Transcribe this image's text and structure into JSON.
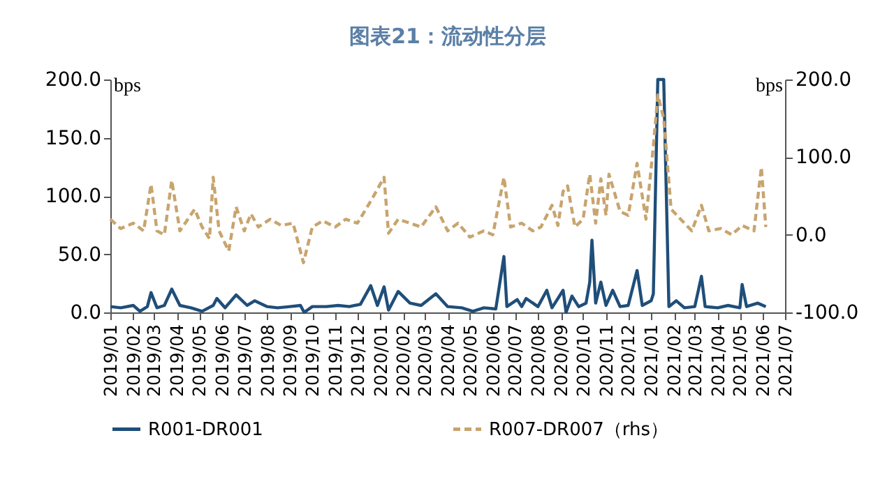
{
  "chart_data": {
    "type": "line",
    "title": "图表21：流动性分层",
    "ylabel": "bps",
    "y2label": "bps",
    "xlim": [
      "2019-01",
      "2021-07"
    ],
    "xticks": [
      {
        "value": "2019-01",
        "label": "2019/01"
      },
      {
        "value": "2019-02",
        "label": "2019/02"
      },
      {
        "value": "2019-03",
        "label": "2019/03"
      },
      {
        "value": "2019-04",
        "label": "2019/04"
      },
      {
        "value": "2019-05",
        "label": "2019/05"
      },
      {
        "value": "2019-06",
        "label": "2019/06"
      },
      {
        "value": "2019-07",
        "label": "2019/07"
      },
      {
        "value": "2019-08",
        "label": "2019/08"
      },
      {
        "value": "2019-09",
        "label": "2019/09"
      },
      {
        "value": "2019-10",
        "label": "2019/10"
      },
      {
        "value": "2019-11",
        "label": "2019/11"
      },
      {
        "value": "2019-12",
        "label": "2019/12"
      },
      {
        "value": "2020-01",
        "label": "2020/01"
      },
      {
        "value": "2020-02",
        "label": "2020/02"
      },
      {
        "value": "2020-03",
        "label": "2020/03"
      },
      {
        "value": "2020-04",
        "label": "2020/04"
      },
      {
        "value": "2020-05",
        "label": "2020/05"
      },
      {
        "value": "2020-06",
        "label": "2020/06"
      },
      {
        "value": "2020-07",
        "label": "2020/07"
      },
      {
        "value": "2020-08",
        "label": "2020/08"
      },
      {
        "value": "2020-09",
        "label": "2020/09"
      },
      {
        "value": "2020-10",
        "label": "2020/10"
      },
      {
        "value": "2020-11",
        "label": "2020/11"
      },
      {
        "value": "2020-12",
        "label": "2020/12"
      },
      {
        "value": "2021-01",
        "label": "2021/01"
      },
      {
        "value": "2021-02",
        "label": "2021/02"
      },
      {
        "value": "2021-03",
        "label": "2021/03"
      },
      {
        "value": "2021-04",
        "label": "2021/04"
      },
      {
        "value": "2021-05",
        "label": "2021/05"
      },
      {
        "value": "2021-06",
        "label": "2021/06"
      },
      {
        "value": "2021-07",
        "label": "2021/07"
      }
    ],
    "ylim": [
      0,
      200
    ],
    "yticks": [
      {
        "value": 0,
        "label": "0.0"
      },
      {
        "value": 50,
        "label": "50.0"
      },
      {
        "value": 100,
        "label": "100.0"
      },
      {
        "value": 150,
        "label": "150.0"
      },
      {
        "value": 200,
        "label": "200.0"
      }
    ],
    "y2lim": [
      -100,
      200
    ],
    "y2ticks": [
      {
        "value": -100,
        "label": "-100.0"
      },
      {
        "value": 0,
        "label": "0.0"
      },
      {
        "value": 100,
        "label": "100.0"
      },
      {
        "value": 200,
        "label": "200.0"
      }
    ],
    "legend": "bottom",
    "grid": false,
    "series": [
      {
        "name": "R001-DR001",
        "color": "#1f4e79",
        "line_style": "solid",
        "x": [
          "2019-01-01",
          "2019-01-15",
          "2019-02-01",
          "2019-02-10",
          "2019-02-20",
          "2019-02-25",
          "2019-03-05",
          "2019-03-15",
          "2019-03-25",
          "2019-04-05",
          "2019-04-20",
          "2019-05-05",
          "2019-05-20",
          "2019-05-25",
          "2019-06-05",
          "2019-06-20",
          "2019-07-05",
          "2019-07-15",
          "2019-08-01",
          "2019-08-15",
          "2019-09-01",
          "2019-09-15",
          "2019-09-20",
          "2019-10-01",
          "2019-10-20",
          "2019-11-05",
          "2019-11-20",
          "2019-12-05",
          "2019-12-19",
          "2019-12-28",
          "2020-01-06",
          "2020-01-12",
          "2020-01-25",
          "2020-02-10",
          "2020-02-25",
          "2020-03-16",
          "2020-04-01",
          "2020-04-20",
          "2020-05-05",
          "2020-05-20",
          "2020-06-05",
          "2020-06-16",
          "2020-06-20",
          "2020-07-04",
          "2020-07-10",
          "2020-07-16",
          "2020-08-01",
          "2020-08-13",
          "2020-08-20",
          "2020-09-04",
          "2020-09-08",
          "2020-09-16",
          "2020-09-25",
          "2020-10-05",
          "2020-10-10",
          "2020-10-13",
          "2020-10-18",
          "2020-10-25",
          "2020-11-01",
          "2020-11-10",
          "2020-11-20",
          "2020-12-01",
          "2020-12-13",
          "2020-12-20",
          "2021-01-01",
          "2021-01-04",
          "2021-01-10",
          "2021-01-18",
          "2021-01-25",
          "2021-02-04",
          "2021-02-15",
          "2021-03-01",
          "2021-03-10",
          "2021-03-15",
          "2021-04-01",
          "2021-04-15",
          "2021-05-01",
          "2021-05-04",
          "2021-05-10",
          "2021-05-25",
          "2021-06-05"
        ],
        "values": [
          5,
          4,
          6,
          1,
          5,
          17,
          4,
          6,
          20,
          6,
          4,
          1,
          6,
          12,
          4,
          15,
          6,
          10,
          5,
          4,
          5,
          6,
          0,
          5,
          5,
          6,
          5,
          7,
          23,
          6,
          22,
          2,
          18,
          8,
          6,
          16,
          5,
          4,
          1,
          4,
          3,
          48,
          5,
          11,
          5,
          12,
          5,
          19,
          4,
          19,
          0,
          14,
          5,
          8,
          26,
          62,
          8,
          26,
          6,
          19,
          5,
          6,
          36,
          6,
          10,
          16,
          200,
          200,
          5,
          10,
          4,
          5,
          31,
          5,
          4,
          6,
          4,
          24,
          5,
          8,
          5
        ]
      },
      {
        "name": "R007-DR007（rhs）",
        "color": "#c8a46e",
        "line_style": "dashed",
        "axis": "y2",
        "x": [
          "2019-01-01",
          "2019-01-15",
          "2019-02-01",
          "2019-02-15",
          "2019-02-25",
          "2019-03-05",
          "2019-03-15",
          "2019-03-25",
          "2019-04-05",
          "2019-04-25",
          "2019-05-05",
          "2019-05-15",
          "2019-05-20",
          "2019-05-28",
          "2019-06-10",
          "2019-06-20",
          "2019-07-01",
          "2019-07-10",
          "2019-07-20",
          "2019-08-05",
          "2019-08-20",
          "2019-09-05",
          "2019-09-19",
          "2019-10-01",
          "2019-10-15",
          "2019-11-01",
          "2019-11-15",
          "2019-12-01",
          "2019-12-20",
          "2020-01-06",
          "2020-01-12",
          "2020-01-25",
          "2020-02-10",
          "2020-02-25",
          "2020-03-16",
          "2020-04-01",
          "2020-04-15",
          "2020-05-01",
          "2020-05-20",
          "2020-06-01",
          "2020-06-16",
          "2020-06-25",
          "2020-07-10",
          "2020-07-25",
          "2020-08-05",
          "2020-08-20",
          "2020-08-28",
          "2020-09-04",
          "2020-09-10",
          "2020-09-20",
          "2020-10-01",
          "2020-10-10",
          "2020-10-18",
          "2020-10-25",
          "2020-11-01",
          "2020-11-05",
          "2020-11-20",
          "2020-12-01",
          "2020-12-13",
          "2020-12-25",
          "2021-01-04",
          "2021-01-10",
          "2021-01-18",
          "2021-01-28",
          "2021-02-10",
          "2021-02-25",
          "2021-03-10",
          "2021-03-20",
          "2021-04-05",
          "2021-04-20",
          "2021-05-04",
          "2021-05-20",
          "2021-05-30",
          "2021-06-05"
        ],
        "values": [
          20,
          8,
          15,
          5,
          65,
          5,
          0,
          70,
          5,
          33,
          10,
          -5,
          74,
          5,
          -21,
          36,
          5,
          27,
          10,
          20,
          12,
          15,
          -36,
          10,
          18,
          10,
          20,
          15,
          45,
          74,
          2,
          20,
          15,
          10,
          36,
          5,
          15,
          -3,
          5,
          0,
          74,
          10,
          15,
          5,
          10,
          38,
          12,
          56,
          63,
          10,
          20,
          78,
          15,
          72,
          25,
          78,
          30,
          25,
          92,
          20,
          114,
          180,
          150,
          33,
          20,
          5,
          38,
          5,
          8,
          0,
          12,
          5,
          87,
          10
        ]
      }
    ]
  }
}
